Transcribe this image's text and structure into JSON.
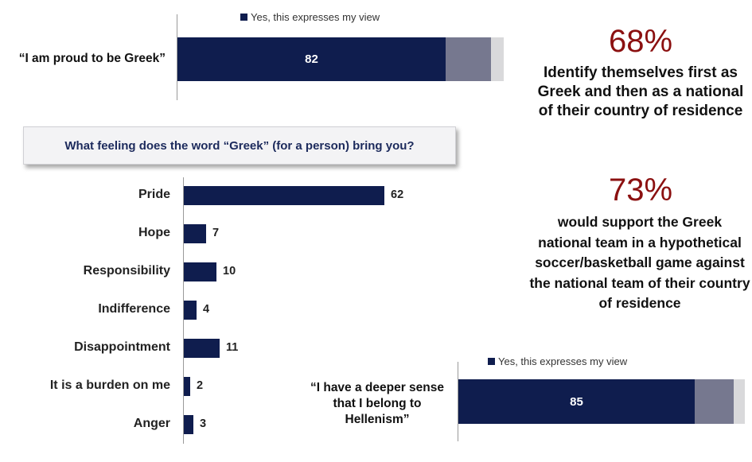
{
  "top_stat": {
    "legend": "Yes, this expresses my view",
    "statement": "“I am proud to be Greek”",
    "value_label": "82"
  },
  "question": "What feeling does the word “Greek” (for a person) bring you?",
  "stat1": {
    "percent": "68%",
    "text": "Identify themselves first as Greek and then as a national of their country of residence"
  },
  "stat2": {
    "percent": "73%",
    "text": "would support the Greek national team in a hypothetical soccer/basketball game against the national team of their country of residence"
  },
  "bottom_stat": {
    "legend": "Yes, this expresses my view",
    "statement": "“I have a deeper sense that I belong to Hellenism”",
    "value_label": "85"
  },
  "colors": {
    "bar": "#0f1d4e",
    "mid": "#76788f",
    "light": "#d9d9db",
    "accent": "#8b1010"
  },
  "chart_data": [
    {
      "type": "bar",
      "orientation": "horizontal",
      "stacked": true,
      "categories": [
        "“I am proud to be Greek”"
      ],
      "series": [
        {
          "name": "Yes, this expresses my view",
          "values": [
            82
          ]
        },
        {
          "values": [
            14
          ]
        },
        {
          "values": [
            4
          ]
        }
      ]
    },
    {
      "type": "bar",
      "orientation": "horizontal",
      "title": "What feeling does the word “Greek” (for a person) bring you?",
      "categories": [
        "Pride",
        "Hope",
        "Responsibility",
        "Indifference",
        "Disappointment",
        "It is a burden on me",
        "Anger"
      ],
      "values": [
        62,
        7,
        10,
        4,
        11,
        2,
        3
      ],
      "xlim": [
        0,
        62
      ]
    },
    {
      "type": "bar",
      "orientation": "horizontal",
      "stacked": true,
      "categories": [
        "“I have a deeper sense that I belong to Hellenism”"
      ],
      "series": [
        {
          "name": "Yes, this expresses my view",
          "values": [
            85
          ]
        },
        {
          "values": [
            13
          ]
        },
        {
          "values": [
            2
          ]
        }
      ]
    }
  ]
}
